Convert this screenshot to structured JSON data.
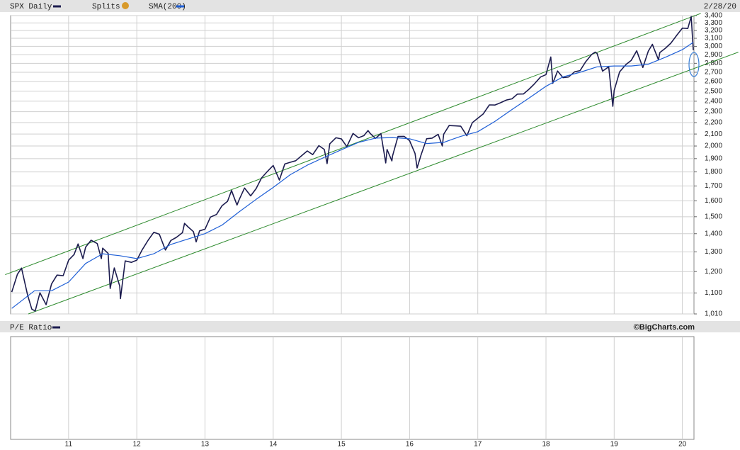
{
  "chart_data": {
    "type": "line",
    "log_y": true,
    "grid": true,
    "date": "2/28/20",
    "splits_label": "Splits",
    "pe_label": "P/E Ratio",
    "source": "©BigCharts.com",
    "xlim": [
      2010.15,
      2020.17
    ],
    "ylim": [
      1010,
      3400
    ],
    "xticks": [
      {
        "value": 2011,
        "label": "11"
      },
      {
        "value": 2012,
        "label": "12"
      },
      {
        "value": 2013,
        "label": "13"
      },
      {
        "value": 2014,
        "label": "14"
      },
      {
        "value": 2015,
        "label": "15"
      },
      {
        "value": 2016,
        "label": "16"
      },
      {
        "value": 2017,
        "label": "17"
      },
      {
        "value": 2018,
        "label": "18"
      },
      {
        "value": 2019,
        "label": "19"
      },
      {
        "value": 2020,
        "label": "20"
      }
    ],
    "yticks": [
      {
        "value": 1010,
        "label": "1,010"
      },
      {
        "value": 1100,
        "label": "1,100"
      },
      {
        "value": 1200,
        "label": "1,200"
      },
      {
        "value": 1300,
        "label": "1,300"
      },
      {
        "value": 1400,
        "label": "1,400"
      },
      {
        "value": 1500,
        "label": "1,500"
      },
      {
        "value": 1600,
        "label": "1,600"
      },
      {
        "value": 1700,
        "label": "1,700"
      },
      {
        "value": 1800,
        "label": "1,800"
      },
      {
        "value": 1900,
        "label": "1,900"
      },
      {
        "value": 2000,
        "label": "2,000"
      },
      {
        "value": 2100,
        "label": "2,100"
      },
      {
        "value": 2200,
        "label": "2,200"
      },
      {
        "value": 2300,
        "label": "2,300"
      },
      {
        "value": 2400,
        "label": "2,400"
      },
      {
        "value": 2500,
        "label": "2,500"
      },
      {
        "value": 2600,
        "label": "2,600"
      },
      {
        "value": 2700,
        "label": "2,700"
      },
      {
        "value": 2800,
        "label": "2,800"
      },
      {
        "value": 2900,
        "label": "2,900"
      },
      {
        "value": 3000,
        "label": "3,000"
      },
      {
        "value": 3100,
        "label": "3,100"
      },
      {
        "value": 3200,
        "label": "3,200"
      },
      {
        "value": 3300,
        "label": "3,300"
      },
      {
        "value": 3400,
        "label": "3,400"
      }
    ],
    "trendlines": [
      {
        "color": "#2e8b2e",
        "x": [
          2010.07,
          2020.27
        ],
        "y": [
          1185,
          3430
        ]
      },
      {
        "color": "#2e8b2e",
        "x": [
          2010.41,
          2020.82
        ],
        "y": [
          1010,
          2930
        ]
      }
    ],
    "series": [
      {
        "name": "SPX Daily",
        "color": "#1c1c4f",
        "x": [
          2010.167,
          2010.25,
          2010.31,
          2010.4,
          2010.46,
          2010.51,
          2010.58,
          2010.67,
          2010.75,
          2010.83,
          2010.92,
          2011.0,
          2011.08,
          2011.14,
          2011.21,
          2011.25,
          2011.33,
          2011.42,
          2011.48,
          2011.5,
          2011.58,
          2011.61,
          2011.67,
          2011.75,
          2011.76,
          2011.83,
          2011.92,
          2012.0,
          2012.08,
          2012.17,
          2012.25,
          2012.33,
          2012.42,
          2012.5,
          2012.58,
          2012.67,
          2012.7,
          2012.75,
          2012.83,
          2012.87,
          2012.92,
          2013.0,
          2013.08,
          2013.17,
          2013.25,
          2013.33,
          2013.39,
          2013.42,
          2013.47,
          2013.5,
          2013.58,
          2013.67,
          2013.75,
          2013.83,
          2013.92,
          2014.0,
          2014.09,
          2014.17,
          2014.25,
          2014.33,
          2014.42,
          2014.5,
          2014.58,
          2014.67,
          2014.75,
          2014.79,
          2014.83,
          2014.92,
          2015.0,
          2015.08,
          2015.17,
          2015.25,
          2015.33,
          2015.39,
          2015.42,
          2015.5,
          2015.58,
          2015.65,
          2015.67,
          2015.74,
          2015.75,
          2015.83,
          2015.92,
          2016.0,
          2016.08,
          2016.11,
          2016.17,
          2016.25,
          2016.33,
          2016.42,
          2016.48,
          2016.5,
          2016.58,
          2016.67,
          2016.75,
          2016.84,
          2016.92,
          2017.0,
          2017.08,
          2017.17,
          2017.25,
          2017.33,
          2017.42,
          2017.5,
          2017.58,
          2017.67,
          2017.75,
          2017.83,
          2017.92,
          2018.0,
          2018.07,
          2018.1,
          2018.17,
          2018.25,
          2018.33,
          2018.42,
          2018.5,
          2018.58,
          2018.67,
          2018.72,
          2018.75,
          2018.83,
          2018.92,
          2018.98,
          2019.0,
          2019.08,
          2019.17,
          2019.25,
          2019.33,
          2019.42,
          2019.5,
          2019.56,
          2019.58,
          2019.65,
          2019.67,
          2019.75,
          2019.83,
          2019.92,
          2020.0,
          2020.08,
          2020.13,
          2020.16
        ],
        "values": [
          1104,
          1187,
          1217,
          1089,
          1030,
          1022,
          1101,
          1049,
          1141,
          1183,
          1180,
          1257,
          1286,
          1343,
          1265,
          1325,
          1363,
          1345,
          1265,
          1320,
          1292,
          1120,
          1218,
          1131,
          1075,
          1253,
          1246,
          1257,
          1312,
          1365,
          1408,
          1397,
          1310,
          1362,
          1379,
          1406,
          1460,
          1440,
          1412,
          1354,
          1416,
          1426,
          1498,
          1514,
          1569,
          1597,
          1669,
          1631,
          1573,
          1606,
          1686,
          1633,
          1682,
          1757,
          1806,
          1848,
          1741,
          1859,
          1872,
          1884,
          1924,
          1960,
          1931,
          2003,
          1972,
          1862,
          2018,
          2068,
          2059,
          1995,
          2105,
          2068,
          2086,
          2130,
          2107,
          2063,
          2104,
          1867,
          1972,
          1882,
          1920,
          2079,
          2080,
          2044,
          1940,
          1829,
          1932,
          2060,
          2065,
          2097,
          2000,
          2099,
          2174,
          2171,
          2168,
          2085,
          2199,
          2239,
          2279,
          2364,
          2363,
          2384,
          2412,
          2423,
          2470,
          2472,
          2519,
          2575,
          2648,
          2674,
          2873,
          2581,
          2714,
          2641,
          2648,
          2705,
          2718,
          2816,
          2902,
          2931,
          2914,
          2712,
          2760,
          2351,
          2507,
          2704,
          2784,
          2834,
          2946,
          2752,
          2942,
          3025,
          2980,
          2840,
          2926,
          2977,
          3038,
          3141,
          3231,
          3226,
          3386,
          2954
        ]
      },
      {
        "name": "SMA(200)",
        "color": "#1f5fd6",
        "x": [
          2010.167,
          2010.5,
          2010.75,
          2011.0,
          2011.25,
          2011.5,
          2011.75,
          2012.0,
          2012.25,
          2012.5,
          2012.75,
          2013.0,
          2013.25,
          2013.5,
          2013.75,
          2014.0,
          2014.25,
          2014.5,
          2014.75,
          2015.0,
          2015.25,
          2015.5,
          2015.75,
          2016.0,
          2016.25,
          2016.5,
          2016.75,
          2017.0,
          2017.25,
          2017.5,
          2017.75,
          2018.0,
          2018.25,
          2018.5,
          2018.75,
          2019.0,
          2019.25,
          2019.5,
          2019.75,
          2020.0,
          2020.16
        ],
        "values": [
          1033,
          1110,
          1110,
          1150,
          1240,
          1290,
          1280,
          1265,
          1290,
          1340,
          1370,
          1400,
          1450,
          1530,
          1610,
          1690,
          1780,
          1850,
          1910,
          1970,
          2030,
          2065,
          2070,
          2060,
          2020,
          2030,
          2080,
          2120,
          2210,
          2320,
          2430,
          2550,
          2650,
          2700,
          2760,
          2770,
          2770,
          2790,
          2870,
          2960,
          3050
        ]
      }
    ]
  }
}
